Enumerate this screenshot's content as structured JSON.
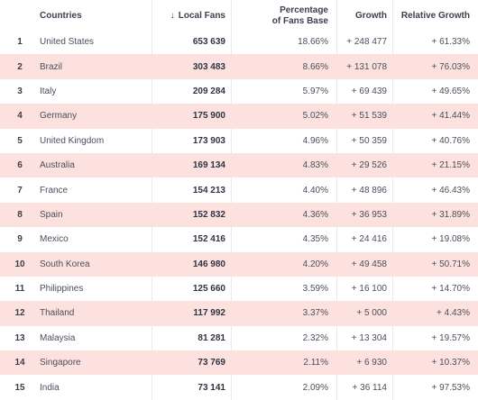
{
  "header": {
    "countries": "Countries",
    "fans_arrow": "↓",
    "local_fans": "Local Fans",
    "pct_line1": "Percentage",
    "pct_line2": "of Fans Base",
    "growth": "Growth",
    "relative_growth": "Relative Growth"
  },
  "rows": [
    {
      "rank": "1",
      "country": "United States",
      "fans": "653 639",
      "pct": "18.66%",
      "growth": "+ 248 477",
      "rel": "+ 61.33%"
    },
    {
      "rank": "2",
      "country": "Brazil",
      "fans": "303 483",
      "pct": "8.66%",
      "growth": "+ 131 078",
      "rel": "+ 76.03%"
    },
    {
      "rank": "3",
      "country": "Italy",
      "fans": "209 284",
      "pct": "5.97%",
      "growth": "+ 69 439",
      "rel": "+ 49.65%"
    },
    {
      "rank": "4",
      "country": "Germany",
      "fans": "175 900",
      "pct": "5.02%",
      "growth": "+ 51 539",
      "rel": "+ 41.44%"
    },
    {
      "rank": "5",
      "country": "United Kingdom",
      "fans": "173 903",
      "pct": "4.96%",
      "growth": "+ 50 359",
      "rel": "+ 40.76%"
    },
    {
      "rank": "6",
      "country": "Australia",
      "fans": "169 134",
      "pct": "4.83%",
      "growth": "+ 29 526",
      "rel": "+ 21.15%"
    },
    {
      "rank": "7",
      "country": "France",
      "fans": "154 213",
      "pct": "4.40%",
      "growth": "+ 48 896",
      "rel": "+ 46.43%"
    },
    {
      "rank": "8",
      "country": "Spain",
      "fans": "152 832",
      "pct": "4.36%",
      "growth": "+ 36 953",
      "rel": "+ 31.89%"
    },
    {
      "rank": "9",
      "country": "Mexico",
      "fans": "152 416",
      "pct": "4.35%",
      "growth": "+ 24 416",
      "rel": "+ 19.08%"
    },
    {
      "rank": "10",
      "country": "South Korea",
      "fans": "146 980",
      "pct": "4.20%",
      "growth": "+ 49 458",
      "rel": "+ 50.71%"
    },
    {
      "rank": "11",
      "country": "Philippines",
      "fans": "125 660",
      "pct": "3.59%",
      "growth": "+ 16 100",
      "rel": "+ 14.70%"
    },
    {
      "rank": "12",
      "country": "Thailand",
      "fans": "117 992",
      "pct": "3.37%",
      "growth": "+ 5 000",
      "rel": "+ 4.43%"
    },
    {
      "rank": "13",
      "country": "Malaysia",
      "fans": "81 281",
      "pct": "2.32%",
      "growth": "+ 13 304",
      "rel": "+ 19.57%"
    },
    {
      "rank": "14",
      "country": "Singapore",
      "fans": "73 769",
      "pct": "2.11%",
      "growth": "+ 6 930",
      "rel": "+ 10.37%"
    },
    {
      "rank": "15",
      "country": "India",
      "fans": "73 141",
      "pct": "2.09%",
      "growth": "+ 36 114",
      "rel": "+ 97.53%"
    }
  ],
  "colors": {
    "alt_row": "#fde1de",
    "text": "#3a3f4b",
    "grid": "#e9e9ee"
  }
}
